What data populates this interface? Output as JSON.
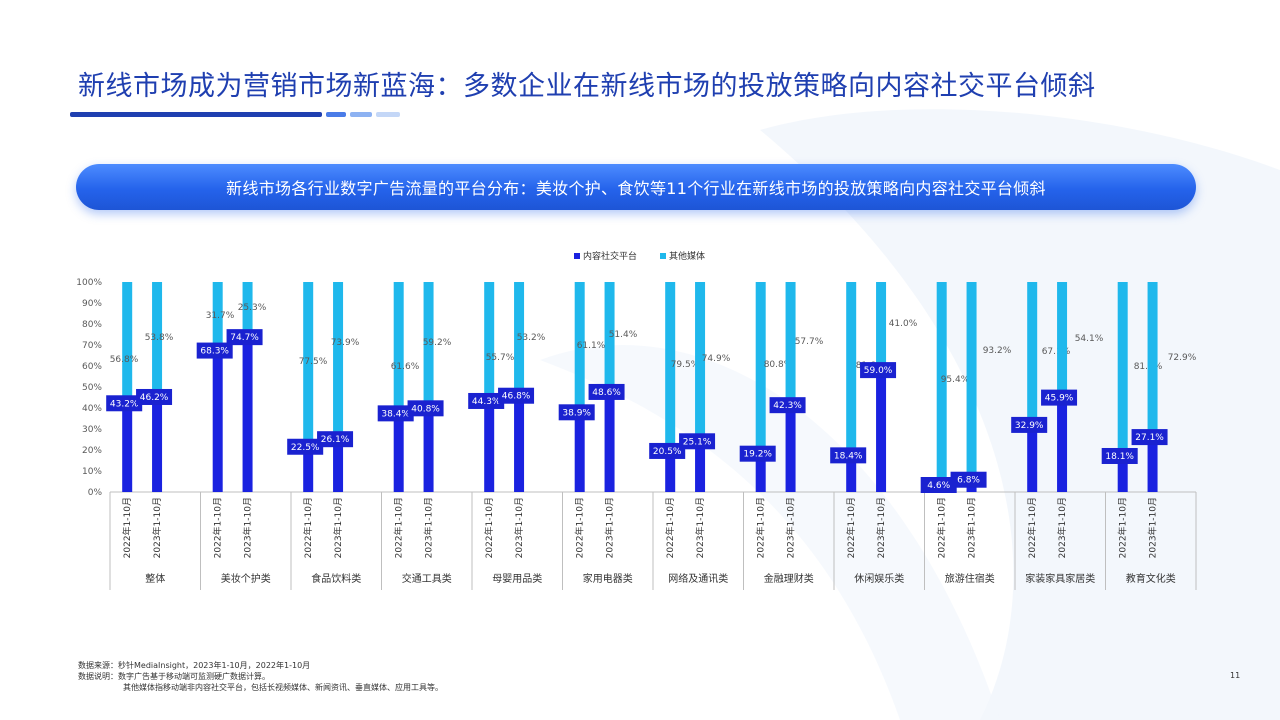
{
  "header": {
    "title": "新线市场成为营销市场新蓝海：多数企业在新线市场的投放策略向内容社交平台倾斜",
    "banner": "新线市场各行业数字广告流量的平台分布：美妆个护、食饮等11个行业在新线市场的投放策略向内容社交平台倾斜"
  },
  "colors": {
    "title": "#1f3fb0",
    "content_social": "#1a22e0",
    "other_media": "#1fb8ec",
    "banner": "#2563eb"
  },
  "chart_data": {
    "type": "bar",
    "stacked": true,
    "percent": true,
    "ylim": [
      0,
      100
    ],
    "yticks": [
      "0%",
      "10%",
      "20%",
      "30%",
      "40%",
      "50%",
      "60%",
      "70%",
      "80%",
      "90%",
      "100%"
    ],
    "legend": [
      "内容社交平台",
      "其他媒体"
    ],
    "legend_position": "top-center",
    "periods": [
      "2022年1-10月",
      "2023年1-10月"
    ],
    "categories": [
      "整体",
      "美妆个护类",
      "食品饮料类",
      "交通工具类",
      "母婴用品类",
      "家用电器类",
      "网络及通讯类",
      "金融理财类",
      "休闲娱乐类",
      "旅游住宿类",
      "家装家具家居类",
      "教育文化类"
    ],
    "series": [
      {
        "name": "内容社交平台",
        "values": [
          [
            43.2,
            46.2
          ],
          [
            68.3,
            74.7
          ],
          [
            22.5,
            26.1
          ],
          [
            38.4,
            40.8
          ],
          [
            44.3,
            46.8
          ],
          [
            38.9,
            48.6
          ],
          [
            20.5,
            25.1
          ],
          [
            19.2,
            42.3
          ],
          [
            18.4,
            59.0
          ],
          [
            4.6,
            6.8
          ],
          [
            32.9,
            45.9
          ],
          [
            18.1,
            27.1
          ]
        ],
        "labels": [
          [
            "43.2%",
            "46.2%"
          ],
          [
            "68.3%",
            "74.7%"
          ],
          [
            "22.5%",
            "26.1%"
          ],
          [
            "38.4%",
            "40.8%"
          ],
          [
            "44.3%",
            "46.8%"
          ],
          [
            "38.9%",
            "48.6%"
          ],
          [
            "20.5%",
            "25.1%"
          ],
          [
            "19.2%",
            "42.3%"
          ],
          [
            "18.4%",
            "59.0%"
          ],
          [
            "4.6%",
            "6.8%"
          ],
          [
            "32.9%",
            "45.9%"
          ],
          [
            "18.1%",
            "27.1%"
          ]
        ]
      },
      {
        "name": "其他媒体",
        "values": [
          [
            56.8,
            53.8
          ],
          [
            31.7,
            25.3
          ],
          [
            77.5,
            73.9
          ],
          [
            61.6,
            59.2
          ],
          [
            55.7,
            53.2
          ],
          [
            61.1,
            51.4
          ],
          [
            79.5,
            74.9
          ],
          [
            80.8,
            57.7
          ],
          [
            81.6,
            41.0
          ],
          [
            95.4,
            93.2
          ],
          [
            67.1,
            54.1
          ],
          [
            81.9,
            72.9
          ]
        ],
        "labels": [
          [
            "56.8%",
            "53.8%"
          ],
          [
            "31.7%",
            "25.3%"
          ],
          [
            "77.5%",
            "73.9%"
          ],
          [
            "61.6%",
            "59.2%"
          ],
          [
            "55.7%",
            "53.2%"
          ],
          [
            "61.1%",
            "51.4%"
          ],
          [
            "79.5%",
            "74.9%"
          ],
          [
            "80.8%",
            "57.7%"
          ],
          [
            "81.6%",
            "41.0%"
          ],
          [
            "95.4%",
            "93.2%"
          ],
          [
            "67.1%",
            "54.1%"
          ],
          [
            "81.9%",
            "72.9%"
          ]
        ]
      }
    ]
  },
  "footer": {
    "source": "数据来源：秒针MediaInsight，2023年1-10月，2022年1-10月",
    "note1": "数据说明：数字广告基于移动端可监测硬广数据计算。",
    "note2": "其他媒体指移动端非内容社交平台，包括长视频媒体、新闻资讯、垂直媒体、应用工具等。"
  },
  "page_number": "11"
}
